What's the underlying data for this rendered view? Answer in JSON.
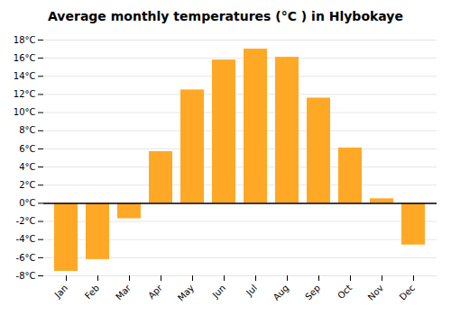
{
  "chart_data": {
    "type": "bar",
    "title": "Average monthly temperatures (°C ) in Hlybokaye",
    "categories": [
      "Jan",
      "Feb",
      "Mar",
      "Apr",
      "May",
      "Jun",
      "Jul",
      "Aug",
      "Sep",
      "Oct",
      "Nov",
      "Dec"
    ],
    "values": [
      -7.5,
      -6.2,
      -1.7,
      5.7,
      12.5,
      15.8,
      17.0,
      16.1,
      11.6,
      6.1,
      0.5,
      -4.6
    ],
    "color": "#FFA826",
    "ylim": [
      -8,
      18
    ],
    "yticks": [
      {
        "value": -8,
        "label": "-8°C"
      },
      {
        "value": -6,
        "label": "-6°C"
      },
      {
        "value": -4,
        "label": "-4°C"
      },
      {
        "value": -2,
        "label": "-2°C"
      },
      {
        "value": 0,
        "label": "0°C"
      },
      {
        "value": 2,
        "label": "2°C"
      },
      {
        "value": 4,
        "label": "4°C"
      },
      {
        "value": 6,
        "label": "6°C"
      },
      {
        "value": 8,
        "label": "8°C"
      },
      {
        "value": 10,
        "label": "10°C"
      },
      {
        "value": 12,
        "label": "12°C"
      },
      {
        "value": 14,
        "label": "14°C"
      },
      {
        "value": 16,
        "label": "16°C"
      },
      {
        "value": 18,
        "label": "18°C"
      }
    ],
    "grid": true
  }
}
